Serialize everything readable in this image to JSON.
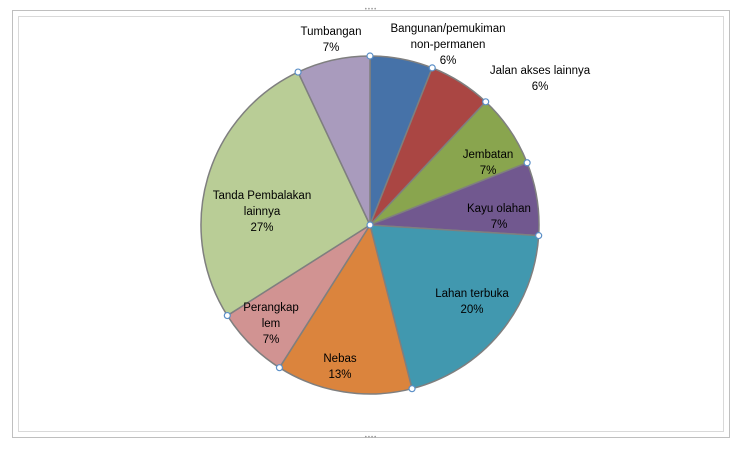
{
  "chart_data": {
    "type": "pie",
    "title": "",
    "slices": [
      {
        "label": "Bangunan/pemukiman non-permanen",
        "pct_label": "6%",
        "value": 6,
        "color": "#4672a8"
      },
      {
        "label": "Jalan akses lainnya",
        "pct_label": "6%",
        "value": 6,
        "color": "#aa4643"
      },
      {
        "label": "Jembatan",
        "pct_label": "7%",
        "value": 7,
        "color": "#89a54e"
      },
      {
        "label": "Kayu olahan",
        "pct_label": "7%",
        "value": 7,
        "color": "#71588f"
      },
      {
        "label": "Lahan terbuka",
        "pct_label": "20%",
        "value": 20,
        "color": "#4198af"
      },
      {
        "label": "Nebas",
        "pct_label": "13%",
        "value": 13,
        "color": "#db843d"
      },
      {
        "label": "Perangkap lem",
        "pct_label": "7%",
        "value": 7,
        "color": "#d19392"
      },
      {
        "label": "Tanda Pembalakan lainnya",
        "pct_label": "27%",
        "value": 27,
        "color": "#b9cd96"
      },
      {
        "label": "Tumbangan",
        "pct_label": "7%",
        "value": 7,
        "color": "#a99bbd"
      }
    ]
  }
}
